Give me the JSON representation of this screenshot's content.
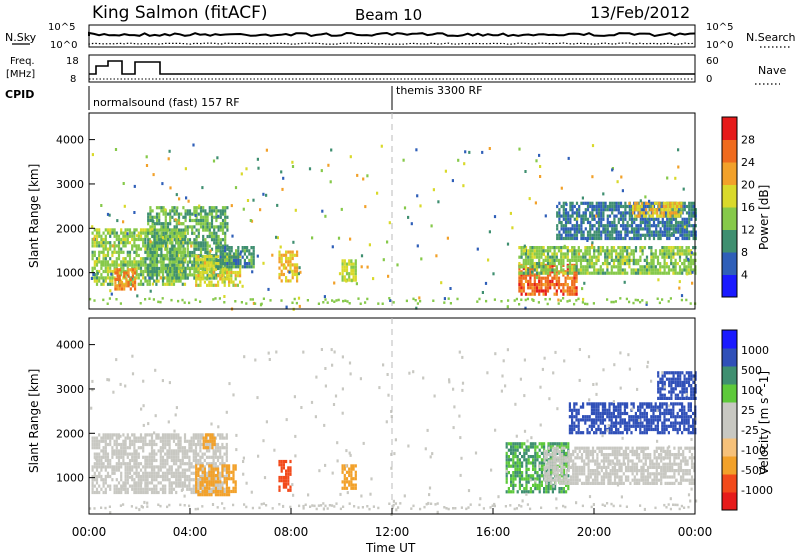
{
  "header": {
    "station": "King Salmon (fitACF)",
    "beam": "Beam 10",
    "date": "13/Feb/2012"
  },
  "top_panels": {
    "nsky_label": "N.Sky",
    "nsky_tick_top": "10^5",
    "nsky_tick_bottom": "10^0",
    "nsearch_label": "N.Search",
    "nsearch_tick_top": "10^5",
    "nsearch_tick_bottom": "10^0",
    "freq_label": "Freq.",
    "freq_unit": "[MHz]",
    "freq_tick_top": "18",
    "freq_tick_bottom": "8",
    "nave_label": "Nave",
    "nave_tick_top": "60",
    "nave_tick_bottom": "0",
    "cpid_label": "CPID",
    "cpid_segments": [
      "normalsound (fast) 157 RF",
      "themis 3300 RF"
    ]
  },
  "colors": {
    "power_scale": [
      "#1a1aff",
      "#2f5fb8",
      "#3f8f70",
      "#86c94a",
      "#d9d92b",
      "#f2a12a",
      "#ef6b1e",
      "#e61b1b"
    ],
    "velocity_scale": [
      "#e61b1b",
      "#f24a1b",
      "#f2a12a",
      "#f6c17a",
      "#c8c8c2",
      "#c8c8c2",
      "#5ec93a",
      "#3f8f70",
      "#3050b8",
      "#1a1aff"
    ]
  },
  "chart_data": [
    {
      "type": "heatmap",
      "panel": "power",
      "ylabel": "Slant Range [km]",
      "yticks": [
        "1000",
        "2000",
        "3000",
        "4000"
      ],
      "ylim": [
        180,
        4600
      ],
      "xlim": [
        0,
        24
      ],
      "colorbar_label": "Power [dB]",
      "colorbar_ticks": [
        "4",
        "8",
        "12",
        "16",
        "20",
        "24",
        "28"
      ],
      "colorbar_range": [
        0,
        32
      ],
      "regions": [
        {
          "t": [
            0.1,
            3.8
          ],
          "r": [
            750,
            2000
          ],
          "value": 14
        },
        {
          "t": [
            1.0,
            1.8
          ],
          "r": [
            650,
            1100
          ],
          "value": 24
        },
        {
          "t": [
            2.3,
            5.5
          ],
          "r": [
            900,
            2500
          ],
          "value": 12
        },
        {
          "t": [
            4.2,
            6.0
          ],
          "r": [
            700,
            1400
          ],
          "value": 18
        },
        {
          "t": [
            5.0,
            6.5
          ],
          "r": [
            1100,
            1600
          ],
          "value": 10
        },
        {
          "t": [
            7.5,
            8.2
          ],
          "r": [
            800,
            1500
          ],
          "value": 20
        },
        {
          "t": [
            10.0,
            10.6
          ],
          "r": [
            850,
            1300
          ],
          "value": 16
        },
        {
          "t": [
            17.0,
            19.3
          ],
          "r": [
            500,
            1200
          ],
          "value": 26
        },
        {
          "t": [
            17.0,
            24.0
          ],
          "r": [
            1000,
            1600
          ],
          "value": 14
        },
        {
          "t": [
            18.5,
            24.0
          ],
          "r": [
            1800,
            2600
          ],
          "value": 8
        },
        {
          "t": [
            21.5,
            23.5
          ],
          "r": [
            2300,
            2600
          ],
          "value": 20
        }
      ]
    },
    {
      "type": "heatmap",
      "panel": "velocity",
      "ylabel": "Slant Range [km]",
      "yticks": [
        "1000",
        "2000",
        "3000",
        "4000"
      ],
      "ylim": [
        180,
        4600
      ],
      "xlim": [
        0,
        24
      ],
      "xlabel": "Time UT",
      "xticks": [
        "00:00",
        "04:00",
        "08:00",
        "12:00",
        "16:00",
        "20:00",
        "00:00"
      ],
      "colorbar_label": "Velocity [m s^-1]",
      "colorbar_ticks": [
        "-1000",
        "-500",
        "-100",
        "-25",
        "25",
        "100",
        "500",
        "1000"
      ],
      "regions": [
        {
          "t": [
            0.1,
            5.5
          ],
          "r": [
            700,
            2000
          ],
          "value": 0
        },
        {
          "t": [
            4.2,
            5.8
          ],
          "r": [
            600,
            1300
          ],
          "value": -150
        },
        {
          "t": [
            4.5,
            5.0
          ],
          "r": [
            1700,
            2000
          ],
          "value": -150
        },
        {
          "t": [
            7.5,
            8.0
          ],
          "r": [
            700,
            1400
          ],
          "value": -800
        },
        {
          "t": [
            10.0,
            10.6
          ],
          "r": [
            750,
            1300
          ],
          "value": -150
        },
        {
          "t": [
            16.5,
            19.0
          ],
          "r": [
            700,
            1800
          ],
          "value": 100
        },
        {
          "t": [
            18.0,
            24.0
          ],
          "r": [
            900,
            1700
          ],
          "value": 0
        },
        {
          "t": [
            19.0,
            24.0
          ],
          "r": [
            2000,
            2700
          ],
          "value": 600
        },
        {
          "t": [
            22.5,
            24.0
          ],
          "r": [
            2800,
            3400
          ],
          "value": 800
        }
      ]
    }
  ]
}
